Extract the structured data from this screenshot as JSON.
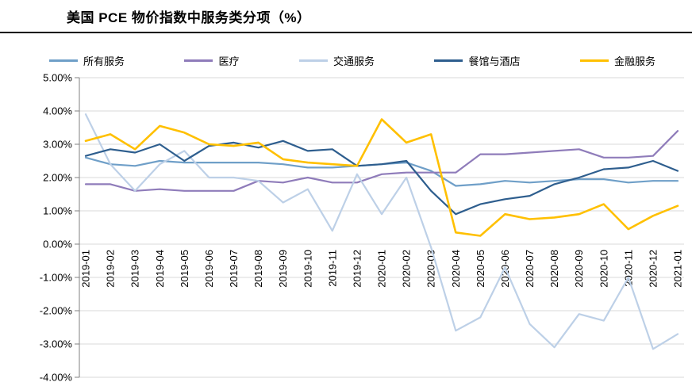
{
  "title": "美国 PCE 物价指数中服务类分项（%）",
  "chart_data": {
    "type": "line",
    "title": "美国 PCE 物价指数中服务类分项（%）",
    "categories": [
      "2019-01",
      "2019-02",
      "2019-03",
      "2019-04",
      "2019-05",
      "2019-06",
      "2019-07",
      "2019-08",
      "2019-09",
      "2019-10",
      "2019-11",
      "2019-12",
      "2020-01",
      "2020-02",
      "2020-03",
      "2020-04",
      "2020-05",
      "2020-06",
      "2020-07",
      "2020-08",
      "2020-09",
      "2020-10",
      "2020-11",
      "2020-12",
      "2021-01"
    ],
    "series": [
      {
        "name": "所有服务",
        "color": "#6f9fc8",
        "values": [
          2.6,
          2.4,
          2.35,
          2.5,
          2.45,
          2.45,
          2.45,
          2.45,
          2.4,
          2.3,
          2.3,
          2.35,
          2.4,
          2.45,
          2.2,
          1.75,
          1.8,
          1.9,
          1.85,
          1.9,
          1.95,
          1.95,
          1.85,
          1.9,
          1.9
        ]
      },
      {
        "name": "医疗",
        "color": "#8f7cba",
        "values": [
          1.8,
          1.8,
          1.6,
          1.65,
          1.6,
          1.6,
          1.6,
          1.9,
          1.85,
          2.0,
          1.85,
          1.85,
          2.1,
          2.15,
          2.15,
          2.15,
          2.7,
          2.7,
          2.75,
          2.8,
          2.85,
          2.6,
          2.6,
          2.65,
          3.4
        ]
      },
      {
        "name": "交通服务",
        "color": "#bdd0e7",
        "values": [
          3.9,
          2.4,
          1.6,
          2.4,
          2.8,
          2.0,
          2.0,
          1.9,
          1.25,
          1.65,
          0.4,
          2.1,
          0.9,
          2.0,
          -0.1,
          -2.6,
          -2.2,
          -0.7,
          -2.4,
          -3.1,
          -2.1,
          -2.3,
          -1.0,
          -3.15,
          -2.7
        ]
      },
      {
        "name": "餐馆与酒店",
        "color": "#2e5e8e",
        "values": [
          2.65,
          2.85,
          2.75,
          3.0,
          2.5,
          2.95,
          3.05,
          2.9,
          3.1,
          2.8,
          2.85,
          2.35,
          2.4,
          2.5,
          1.6,
          0.9,
          1.2,
          1.35,
          1.45,
          1.8,
          2.0,
          2.25,
          2.3,
          2.5,
          2.2
        ]
      },
      {
        "name": "金融服务",
        "color": "#ffc000",
        "values": [
          3.1,
          3.3,
          2.85,
          3.55,
          3.35,
          3.0,
          2.95,
          3.05,
          2.55,
          2.45,
          2.4,
          2.35,
          3.75,
          3.05,
          3.3,
          0.35,
          0.25,
          0.9,
          0.75,
          0.8,
          0.9,
          1.2,
          0.45,
          0.85,
          1.15
        ]
      }
    ],
    "ylim": [
      -4,
      5
    ],
    "ytick_step": 1,
    "ytick_labels": [
      "5.00%",
      "4.00%",
      "3.00%",
      "2.00%",
      "1.00%",
      "0.00%",
      "-1.00%",
      "-2.00%",
      "-3.00%",
      "-4.00%"
    ],
    "grid": true,
    "legend_position": "top",
    "x_label_rotation": -90,
    "xlabel": "",
    "ylabel": ""
  },
  "style": {
    "gridline_color": "#d9d9d9",
    "axis_color": "#808080",
    "text_color": "#000000",
    "background": "#ffffff"
  }
}
